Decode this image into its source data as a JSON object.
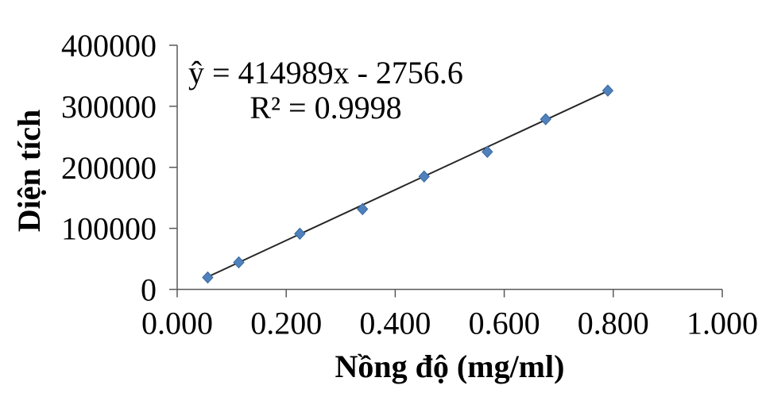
{
  "chart_data": {
    "type": "scatter",
    "title": "",
    "xlabel": "Nồng độ (mg/ml)",
    "ylabel": "Diện tích",
    "x": [
      0.056,
      0.113,
      0.225,
      0.34,
      0.453,
      0.569,
      0.676,
      0.79
    ],
    "y": [
      19500,
      44300,
      91200,
      131600,
      185000,
      225400,
      278800,
      325700
    ],
    "xlim": [
      0,
      1
    ],
    "ylim": [
      0,
      400000
    ],
    "x_tick_values": [
      0,
      0.2,
      0.4,
      0.6,
      0.8,
      1.0
    ],
    "x_tick_labels": [
      "0.000",
      "0.200",
      "0.400",
      "0.600",
      "0.800",
      "1.000"
    ],
    "y_tick_values": [
      0,
      100000,
      200000,
      300000,
      400000
    ],
    "y_tick_labels": [
      "0",
      "100000",
      "200000",
      "300000",
      "400000"
    ],
    "grid": false,
    "legend": null,
    "annotation": {
      "line1": "ŷ = 414989x - 2756.6",
      "line2": "R² = 0.9998"
    },
    "trendline": {
      "slope": 414989,
      "intercept": -2756.6,
      "x_start": 0.056,
      "x_end": 0.79,
      "color": "#262626"
    },
    "marker": {
      "shape": "diamond",
      "fill": "#4f81bd",
      "stroke": "#3a699f",
      "half_w": 6.5,
      "half_h": 7
    },
    "axis_color": "#595959",
    "text_color": "#000000"
  }
}
